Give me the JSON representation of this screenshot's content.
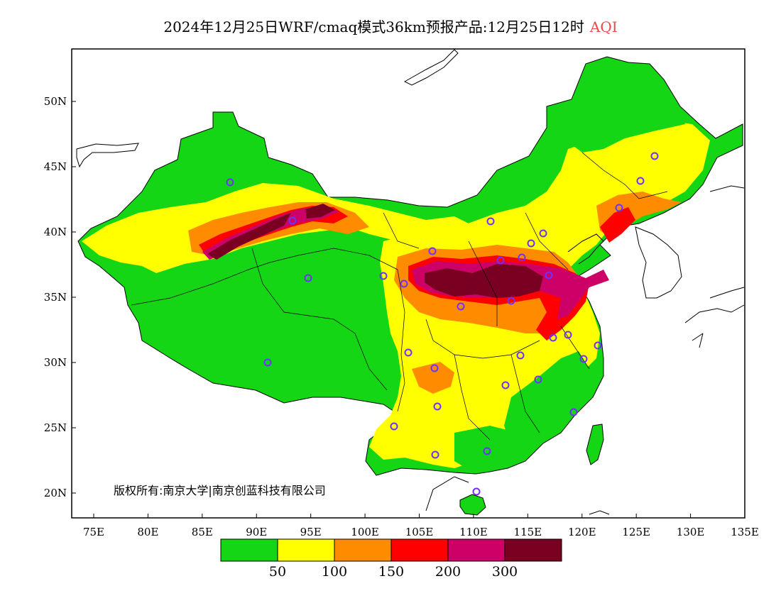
{
  "title": {
    "main": "2024年12月25日WRF/cmaq模式36km预报产品:12月25日12时",
    "variable": "AQI"
  },
  "axes": {
    "x_ticks": [
      "75E",
      "80E",
      "85E",
      "90E",
      "95E",
      "100E",
      "105E",
      "110E",
      "115E",
      "120E",
      "125E",
      "130E",
      "135E"
    ],
    "y_ticks": [
      "20N",
      "25N",
      "30N",
      "35N",
      "40N",
      "45N",
      "50N"
    ]
  },
  "colorbar": {
    "colors": [
      "#14d614",
      "#ffff00",
      "#ff8c00",
      "#ff0000",
      "#cc0066",
      "#7a0022"
    ],
    "labels": [
      "50",
      "100",
      "150",
      "200",
      "300"
    ]
  },
  "copyright": "版权所有:南京大学|南京创蓝科技有限公司",
  "palette": {
    "good": "#14d614",
    "moderate": "#ffff00",
    "usg": "#ff8c00",
    "unhealthy": "#ff0000",
    "very_unhealthy": "#cc0066",
    "hazardous": "#7a0022",
    "marker": "#7030ff"
  }
}
